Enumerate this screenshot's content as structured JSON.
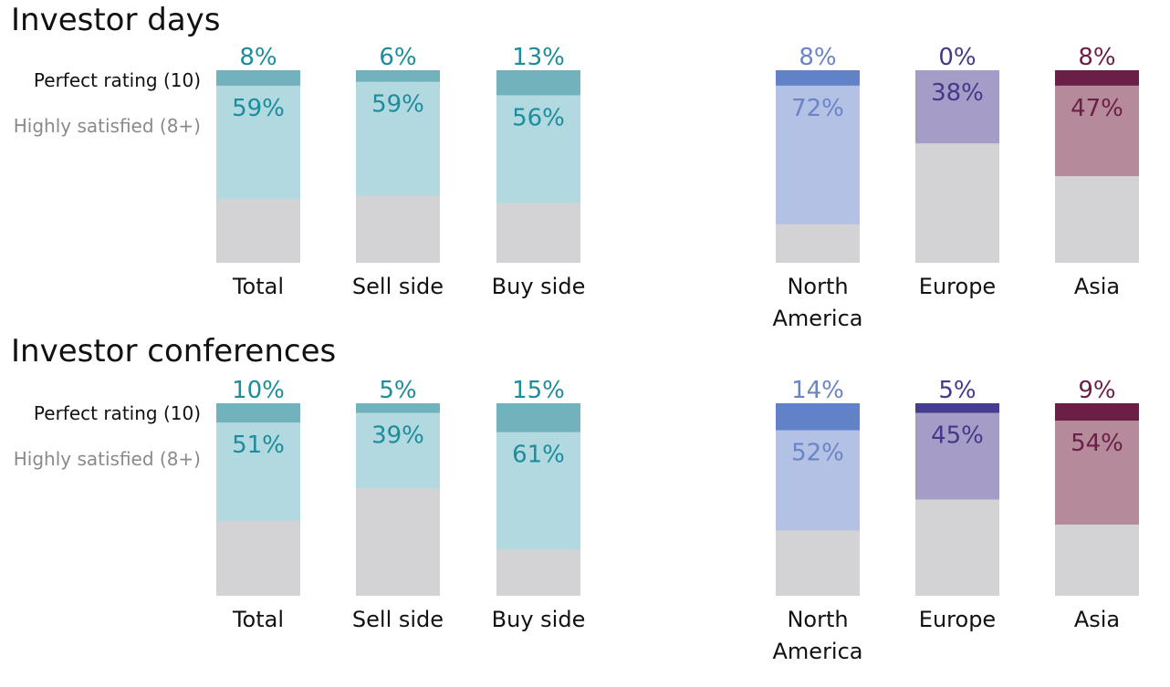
{
  "charts": [
    {
      "title": "Investor days",
      "legend": {
        "perfect": "Perfect rating (10)",
        "high": "Highly satisfied (8+)"
      }
    },
    {
      "title": "Investor conferences",
      "legend": {
        "perfect": "Perfect rating (10)",
        "high": "Highly satisfied (8+)"
      }
    }
  ],
  "palettes": {
    "teal": {
      "perfect": "#72b2bd",
      "high": "#b1d9df",
      "text": "#1b8d9c"
    },
    "blue": {
      "perfect": "#6282c8",
      "high": "#b3c1e5",
      "text": "#6a84c6"
    },
    "purple": {
      "perfect": "#463d8e",
      "high": "#a59dc8",
      "text": "#423a88"
    },
    "wine": {
      "perfect": "#6b1f46",
      "high": "#b58a9b",
      "text": "#6b1f46"
    },
    "rest": "#d3d3d5"
  },
  "chart_data": [
    {
      "type": "bar",
      "title": "Investor days",
      "stacked": true,
      "categories": [
        "Total",
        "Sell side",
        "Buy side",
        "North America",
        "Europe",
        "Asia"
      ],
      "category_colors": [
        "teal",
        "teal",
        "teal",
        "blue",
        "purple",
        "wine"
      ],
      "series": [
        {
          "name": "Perfect rating (10)",
          "values": [
            8,
            6,
            13,
            8,
            0,
            8
          ]
        },
        {
          "name": "Highly satisfied (8+)",
          "values": [
            59,
            59,
            56,
            72,
            38,
            47
          ]
        }
      ],
      "ylim": [
        0,
        100
      ],
      "grid": false
    },
    {
      "type": "bar",
      "title": "Investor conferences",
      "stacked": true,
      "categories": [
        "Total",
        "Sell side",
        "Buy side",
        "North America",
        "Europe",
        "Asia"
      ],
      "category_colors": [
        "teal",
        "teal",
        "teal",
        "blue",
        "purple",
        "wine"
      ],
      "series": [
        {
          "name": "Perfect rating (10)",
          "values": [
            10,
            5,
            15,
            14,
            5,
            9
          ]
        },
        {
          "name": "Highly satisfied (8+)",
          "values": [
            51,
            39,
            61,
            52,
            45,
            54
          ]
        }
      ],
      "ylim": [
        0,
        100
      ],
      "grid": false
    }
  ]
}
